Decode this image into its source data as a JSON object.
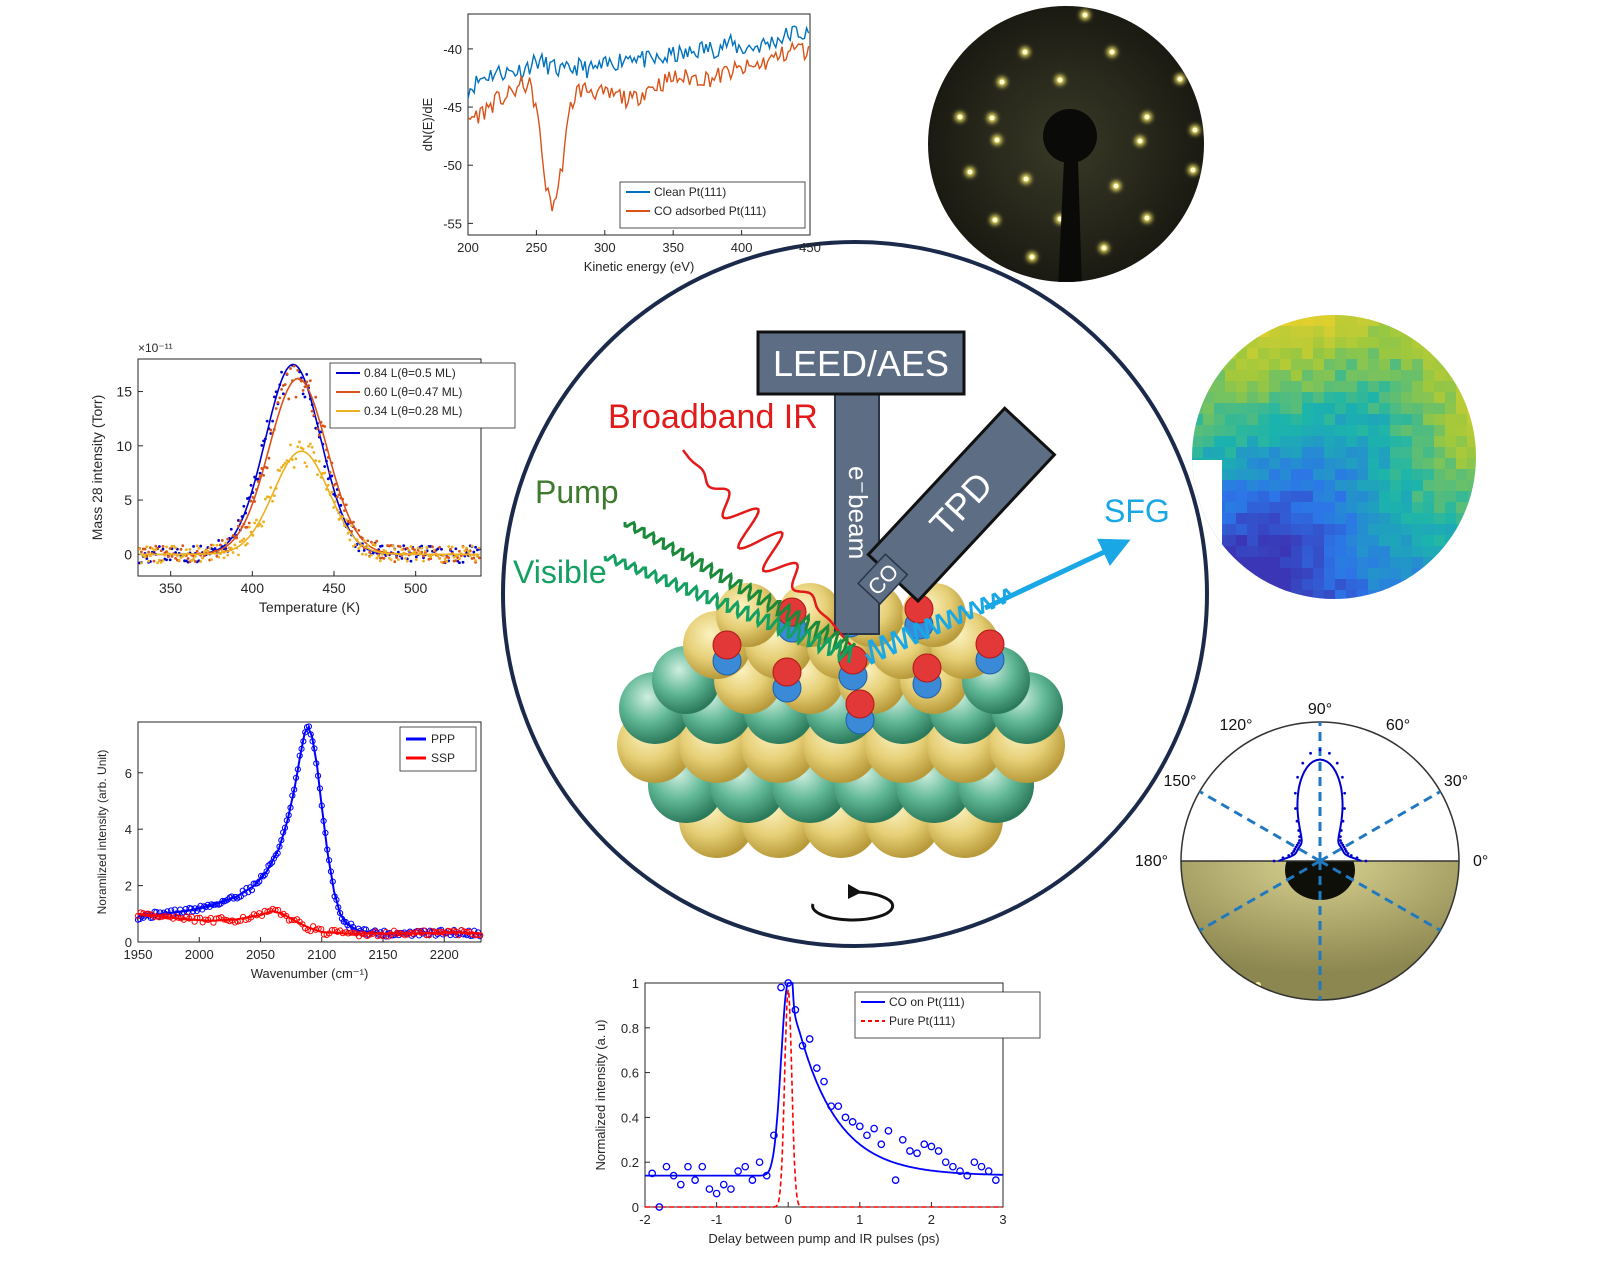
{
  "center": {
    "leed_label": "LEED/AES",
    "tpd_label": "TPD",
    "ebeam_label": "e⁻beam",
    "co_label": "CO",
    "broadband_label": "Broadband IR",
    "pump_label": "Pump",
    "visible_label": "Visible",
    "sfg_label": "SFG"
  },
  "polar": {
    "angle_labels": [
      "0°",
      "30°",
      "60°",
      "90°",
      "120°",
      "150°",
      "180°"
    ],
    "symmetry": "3-fold (6-lobe) SFG rotational anisotropy"
  },
  "colors": {
    "blue": "#0072BD",
    "orange": "#D95319",
    "yellow": "#EDB120",
    "pure_blue": "#0000FF",
    "pure_red": "#FF0000",
    "circle": "#1b2a4a",
    "panel": "#5a6a80"
  },
  "chart_data": [
    {
      "id": "aes",
      "type": "line",
      "xlabel": "Kinetic energy (eV)",
      "ylabel": "dN(E)/dE",
      "xlim": [
        200,
        450
      ],
      "ylim": [
        -56,
        -37
      ],
      "xticks": [
        200,
        250,
        300,
        350,
        400,
        450
      ],
      "yticks": [
        -40,
        -45,
        -50,
        -55
      ],
      "legend_position": "bottom-right",
      "series": [
        {
          "name": "Clean Pt(111)",
          "color": "#0072BD",
          "x": [
            200,
            210,
            220,
            230,
            240,
            250,
            260,
            270,
            280,
            290,
            300,
            310,
            320,
            330,
            340,
            350,
            360,
            370,
            380,
            390,
            400,
            410,
            420,
            430,
            440,
            450
          ],
          "y": [
            -43.5,
            -42.5,
            -42,
            -42,
            -41.8,
            -41,
            -41.5,
            -42,
            -41.5,
            -41.8,
            -41.5,
            -41,
            -40.5,
            -41,
            -41,
            -40.5,
            -40.5,
            -40,
            -40,
            -39.5,
            -40,
            -39.8,
            -39.5,
            -39,
            -38.5,
            -39
          ]
        },
        {
          "name": "CO adsorbed Pt(111)",
          "color": "#D95319",
          "x": [
            200,
            210,
            220,
            230,
            240,
            245,
            250,
            255,
            258,
            262,
            266,
            270,
            275,
            280,
            290,
            300,
            310,
            320,
            330,
            340,
            350,
            360,
            370,
            380,
            390,
            400,
            410,
            420,
            430,
            440,
            450
          ],
          "y": [
            -46,
            -45.5,
            -44.5,
            -44,
            -43,
            -43.2,
            -45,
            -50,
            -52.5,
            -53.5,
            -52,
            -49,
            -45,
            -43.5,
            -43.5,
            -44,
            -44,
            -44.5,
            -43.5,
            -43,
            -42.5,
            -42.5,
            -42.5,
            -42.5,
            -42,
            -41.8,
            -41.5,
            -41,
            -40.5,
            -39.8,
            -40.5
          ]
        }
      ]
    },
    {
      "id": "tpd",
      "type": "scatter",
      "xlabel": "Temperature (K)",
      "ylabel": "Mass 28 intensity (Torr)",
      "y_exponent": "×10⁻¹¹",
      "xlim": [
        330,
        540
      ],
      "ylim": [
        -2,
        18
      ],
      "xticks": [
        350,
        400,
        450,
        500
      ],
      "yticks": [
        0,
        5,
        10,
        15
      ],
      "legend_position": "top-right",
      "series": [
        {
          "name": "0.84 L(θ=0.5 ML)",
          "color": "#0000CD",
          "peak_x": 425,
          "peak_y": 17.5,
          "width": 24
        },
        {
          "name": "0.60 L(θ=0.47 ML)",
          "color": "#D95319",
          "peak_x": 428,
          "peak_y": 16.2,
          "width": 25
        },
        {
          "name": "0.34 L(θ=0.28 ML)",
          "color": "#EDB120",
          "peak_x": 430,
          "peak_y": 9.5,
          "width": 24
        }
      ]
    },
    {
      "id": "sfg",
      "type": "line",
      "xlabel": "Wavenumber (cm⁻¹)",
      "ylabel": "Noramlized intensity (arb. Unit)",
      "xlim": [
        1950,
        2230
      ],
      "ylim": [
        0,
        7.8
      ],
      "xticks": [
        1950,
        2000,
        2050,
        2100,
        2150,
        2200
      ],
      "yticks": [
        0,
        2,
        4,
        6
      ],
      "legend_position": "top-right",
      "series": [
        {
          "name": "PPP",
          "color": "#0000FF",
          "x": [
            1950,
            1970,
            1990,
            2010,
            2030,
            2045,
            2055,
            2065,
            2072,
            2078,
            2082,
            2086,
            2089,
            2092,
            2096,
            2100,
            2105,
            2110,
            2115,
            2120,
            2130,
            2150,
            2180,
            2210,
            2230
          ],
          "y": [
            0.9,
            1.0,
            1.1,
            1.3,
            1.6,
            2.0,
            2.5,
            3.3,
            4.3,
            5.5,
            6.5,
            7.4,
            7.6,
            7.3,
            6.3,
            4.8,
            3.1,
            1.8,
            1.0,
            0.65,
            0.4,
            0.3,
            0.3,
            0.35,
            0.3
          ]
        },
        {
          "name": "SSP",
          "color": "#FF0000",
          "x": [
            1950,
            1970,
            1990,
            2010,
            2030,
            2050,
            2060,
            2070,
            2080,
            2090,
            2100,
            2120,
            2150,
            2180,
            2210,
            2230
          ],
          "y": [
            1.0,
            0.9,
            0.8,
            0.75,
            0.8,
            0.95,
            1.1,
            0.95,
            0.7,
            0.5,
            0.35,
            0.3,
            0.3,
            0.3,
            0.35,
            0.3
          ]
        }
      ]
    },
    {
      "id": "pump",
      "type": "line",
      "xlabel": "Delay between pump and IR pulses (ps)",
      "ylabel": "Normalized intensity (a. u)",
      "xlim": [
        -2,
        3
      ],
      "ylim": [
        0,
        1
      ],
      "xticks": [
        -2,
        -1,
        0,
        1,
        2,
        3
      ],
      "yticks": [
        0,
        0.2,
        0.4,
        0.6,
        0.8,
        1
      ],
      "legend_position": "top-right",
      "series": [
        {
          "name": "CO on Pt(111)",
          "color": "#0000FF",
          "style": "solid",
          "baseline": 0.14,
          "peak": 1.0,
          "peak_x": 0.0
        },
        {
          "name": "Pure Pt(111)",
          "color": "#FF0000",
          "style": "dashed",
          "baseline": 0.0,
          "peak": 0.97,
          "peak_x": 0.0
        }
      ],
      "points_x": [
        -1.9,
        -1.8,
        -1.7,
        -1.6,
        -1.5,
        -1.4,
        -1.3,
        -1.2,
        -1.1,
        -1.0,
        -0.9,
        -0.8,
        -0.7,
        -0.6,
        -0.5,
        -0.4,
        -0.3,
        -0.2,
        -0.1,
        0.0,
        0.1,
        0.2,
        0.3,
        0.4,
        0.5,
        0.6,
        0.7,
        0.8,
        0.9,
        1.0,
        1.1,
        1.2,
        1.3,
        1.4,
        1.5,
        1.6,
        1.7,
        1.8,
        1.9,
        2.0,
        2.1,
        2.2,
        2.3,
        2.4,
        2.5,
        2.6,
        2.7,
        2.8,
        2.9
      ],
      "points_y": [
        0.15,
        0.0,
        0.18,
        0.14,
        0.1,
        0.18,
        0.12,
        0.18,
        0.08,
        0.06,
        0.1,
        0.08,
        0.16,
        0.18,
        0.12,
        0.2,
        0.14,
        0.32,
        0.98,
        1.0,
        0.88,
        0.72,
        0.75,
        0.62,
        0.56,
        0.45,
        0.45,
        0.4,
        0.38,
        0.36,
        0.32,
        0.35,
        0.28,
        0.34,
        0.12,
        0.3,
        0.25,
        0.24,
        0.28,
        0.27,
        0.25,
        0.2,
        0.18,
        0.16,
        0.14,
        0.2,
        0.18,
        0.16,
        0.12
      ]
    }
  ]
}
